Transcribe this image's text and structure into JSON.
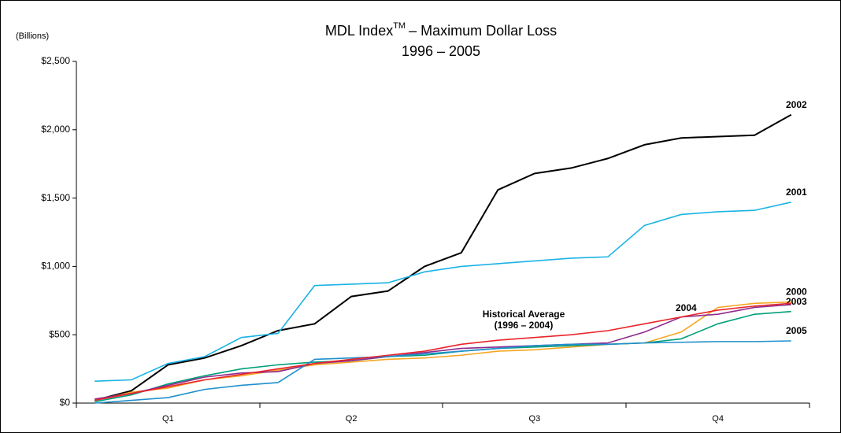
{
  "chart_data": {
    "type": "line",
    "title": "MDL Index",
    "title_superscript": "TM",
    "title_rest": "– Maximum Dollar Loss",
    "subtitle": "1996 – 2005",
    "y_axis_label": "(Billions)",
    "categories": [
      null,
      null,
      "Q1",
      null,
      null,
      null,
      null,
      "Q2",
      null,
      null,
      null,
      null,
      "Q3",
      null,
      null,
      null,
      null,
      "Q4",
      null,
      null
    ],
    "ylim": [
      0,
      2500
    ],
    "yticks": [
      {
        "value": 0,
        "label": "$0"
      },
      {
        "value": 500,
        "label": "$500"
      },
      {
        "value": 1000,
        "label": "$1,000"
      },
      {
        "value": 1500,
        "label": "$1,500"
      },
      {
        "value": 2000,
        "label": "$2,000"
      },
      {
        "value": 2500,
        "label": "$2,500"
      }
    ],
    "series": [
      {
        "name": "2002",
        "color": "#000000",
        "values": [
          20,
          90,
          280,
          330,
          420,
          530,
          580,
          780,
          820,
          1000,
          1100,
          1560,
          1680,
          1720,
          1790,
          1890,
          1940,
          1950,
          1960,
          2110
        ]
      },
      {
        "name": "2001",
        "color": "#1ab3e6",
        "values": [
          160,
          170,
          290,
          340,
          480,
          510,
          860,
          870,
          880,
          960,
          1000,
          1020,
          1040,
          1060,
          1070,
          1300,
          1380,
          1400,
          1410,
          1470
        ]
      },
      {
        "name": "2000",
        "color": "#f5a623",
        "values": [
          20,
          80,
          110,
          170,
          200,
          240,
          280,
          300,
          320,
          330,
          350,
          380,
          390,
          410,
          430,
          440,
          520,
          700,
          730,
          740
        ]
      },
      {
        "name": "2003",
        "color": "#00a07a",
        "values": [
          10,
          60,
          140,
          200,
          250,
          280,
          300,
          310,
          340,
          350,
          380,
          400,
          410,
          420,
          430,
          440,
          470,
          580,
          650,
          670
        ]
      },
      {
        "name": "2004",
        "color": "#8e2a8e",
        "values": [
          30,
          70,
          130,
          190,
          220,
          230,
          290,
          310,
          340,
          370,
          400,
          410,
          420,
          430,
          440,
          520,
          630,
          650,
          700,
          720
        ]
      },
      {
        "name": "2005",
        "color": "#1f8fcc",
        "values": [
          0,
          20,
          40,
          100,
          130,
          150,
          320,
          330,
          340,
          360,
          380,
          400,
          420,
          430,
          430,
          440,
          445,
          450,
          450,
          455
        ]
      },
      {
        "name": "Historical Average",
        "name_note": "(1996 – 2004)",
        "color": "#e8232a",
        "values": [
          20,
          70,
          120,
          170,
          210,
          250,
          290,
          320,
          350,
          380,
          430,
          460,
          480,
          500,
          530,
          580,
          630,
          680,
          710,
          730
        ]
      }
    ]
  }
}
